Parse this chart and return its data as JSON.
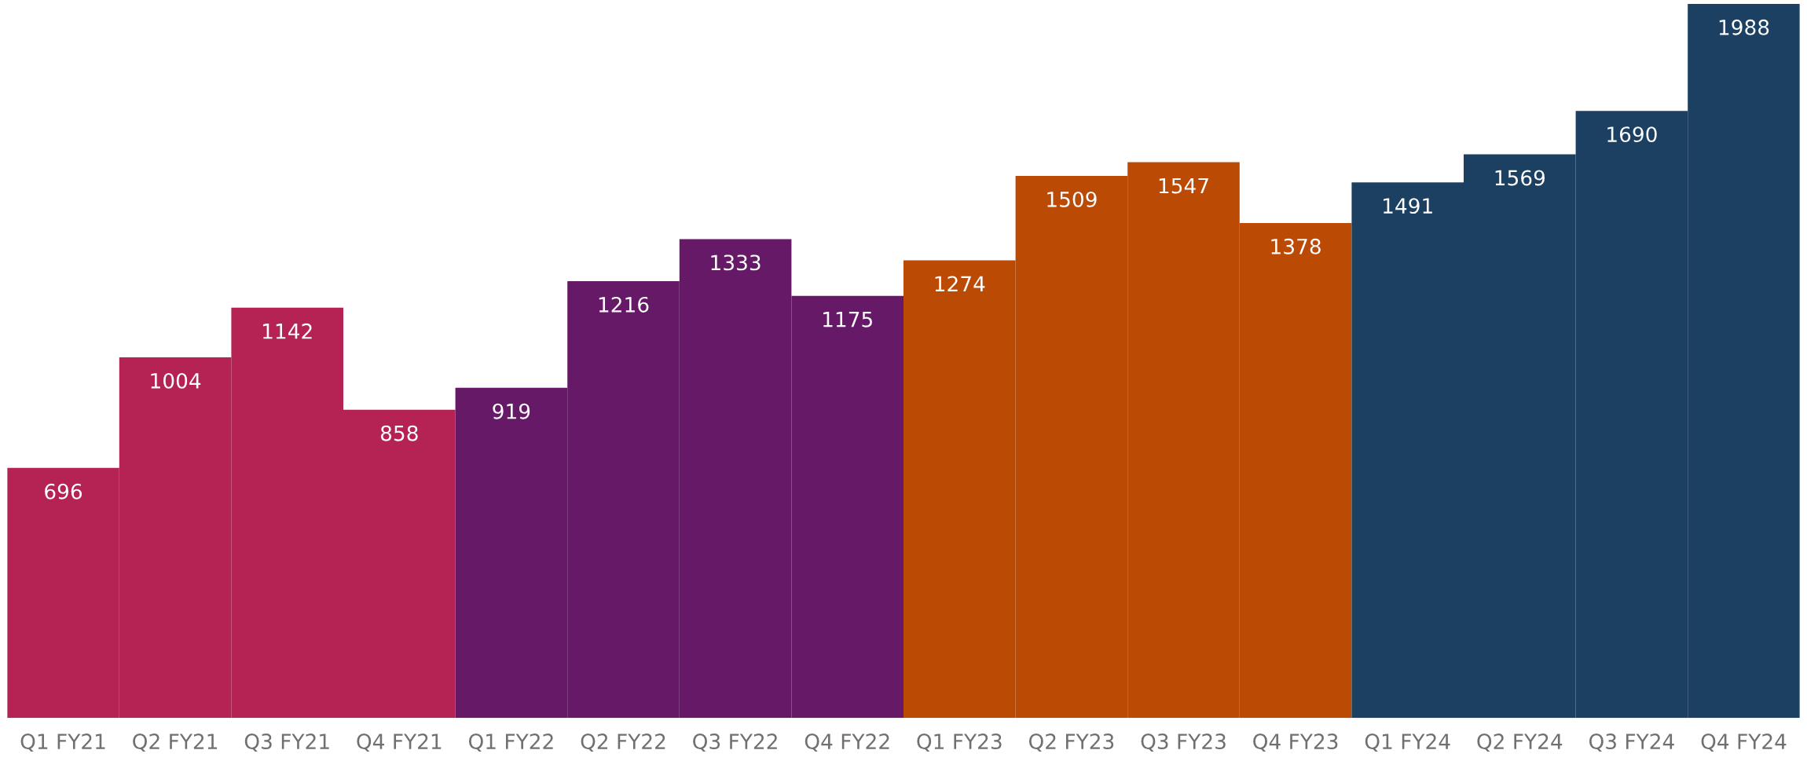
{
  "chart_data": {
    "type": "bar",
    "categories": [
      "Q1 FY21",
      "Q2 FY21",
      "Q3 FY21",
      "Q4 FY21",
      "Q1 FY22",
      "Q2 FY22",
      "Q3 FY22",
      "Q4 FY22",
      "Q1 FY23",
      "Q2 FY23",
      "Q3 FY23",
      "Q4 FY23",
      "Q1 FY24",
      "Q2 FY24",
      "Q3 FY24",
      "Q4 FY24"
    ],
    "values": [
      696,
      1004,
      1142,
      858,
      919,
      1216,
      1333,
      1175,
      1274,
      1509,
      1547,
      1378,
      1491,
      1569,
      1690,
      1988
    ],
    "colors": [
      "#b52254",
      "#b52254",
      "#b52254",
      "#b52254",
      "#661966",
      "#661966",
      "#661966",
      "#661966",
      "#bb4a05",
      "#bb4a05",
      "#bb4a05",
      "#bb4a05",
      "#1c4061",
      "#1c4061",
      "#1c4061",
      "#1c4061"
    ],
    "data_labels": true,
    "grid": false,
    "legend": false,
    "tick_labels": "x"
  }
}
